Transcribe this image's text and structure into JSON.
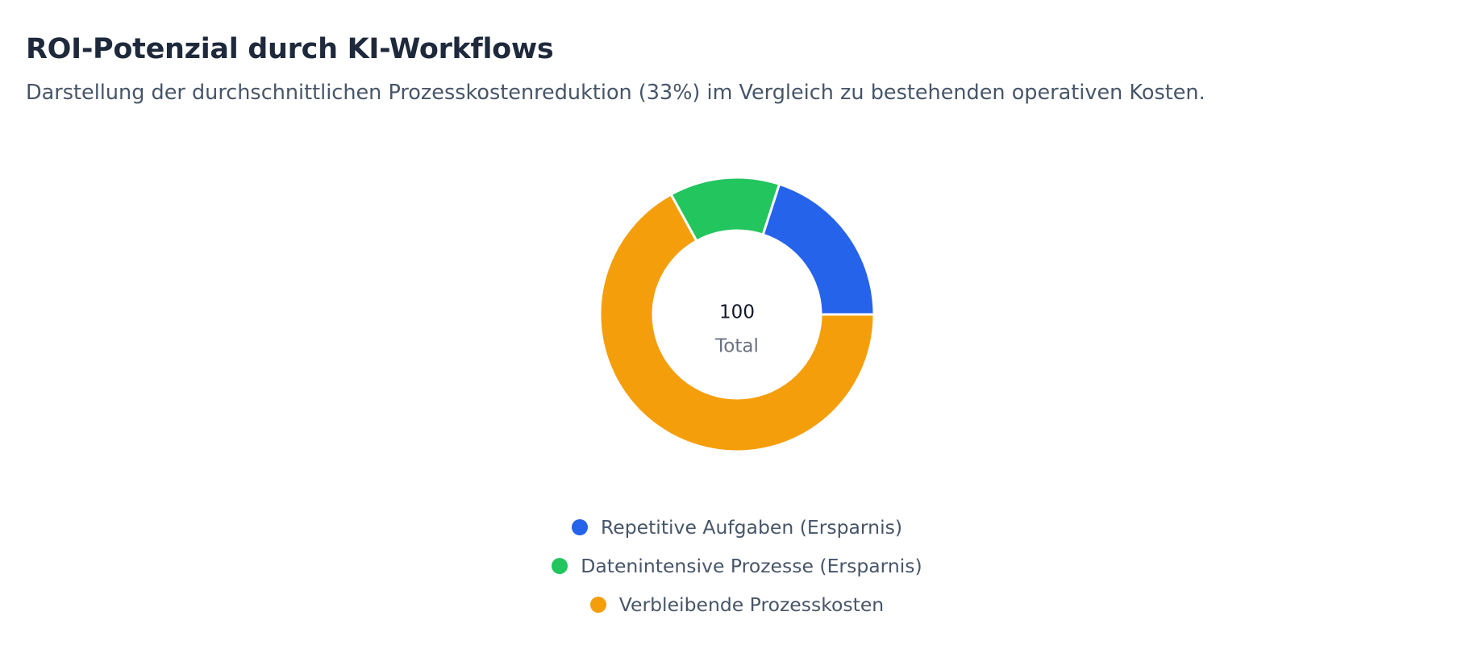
{
  "header": {
    "title": "ROI-Potenzial durch KI-Workflows",
    "subtitle": "Darstellung der durchschnittlichen Prozesskostenreduktion (33%) im Vergleich zu bestehenden operativen Kosten."
  },
  "chart_data": {
    "type": "pie",
    "variant": "doughnut",
    "categories": [
      "Repetitive Aufgaben (Ersparnis)",
      "Datenintensive Prozesse (Ersparnis)",
      "Verbleibende Prozesskosten"
    ],
    "values": [
      20,
      13,
      67
    ],
    "colors": [
      "#2563eb",
      "#22c55e",
      "#f59e0b"
    ],
    "center": {
      "value": "100",
      "label": "Total"
    },
    "legend_position": "bottom"
  }
}
